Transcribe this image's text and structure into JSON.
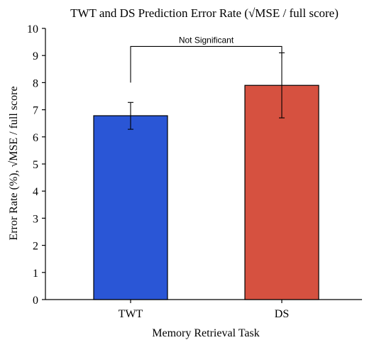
{
  "chart_data": {
    "type": "bar",
    "title": "TWT and DS Prediction Error Rate (√MSE / full score)",
    "xlabel": "Memory Retrieval Task",
    "ylabel": "Error Rate (%), √MSE / full score",
    "categories": [
      "TWT",
      "DS"
    ],
    "values": [
      6.78,
      7.9
    ],
    "error_low": [
      6.28,
      6.7
    ],
    "error_high": [
      7.27,
      9.1
    ],
    "ylim": [
      0,
      10
    ],
    "yticks": [
      0,
      1,
      2,
      3,
      4,
      5,
      6,
      7,
      8,
      9,
      10
    ],
    "grid": false,
    "legend": "none",
    "colors": [
      "#2a56d6",
      "#d65140"
    ],
    "annotation": {
      "text": "Not Significant",
      "from": 0,
      "to": 1,
      "y": 9.7
    }
  }
}
